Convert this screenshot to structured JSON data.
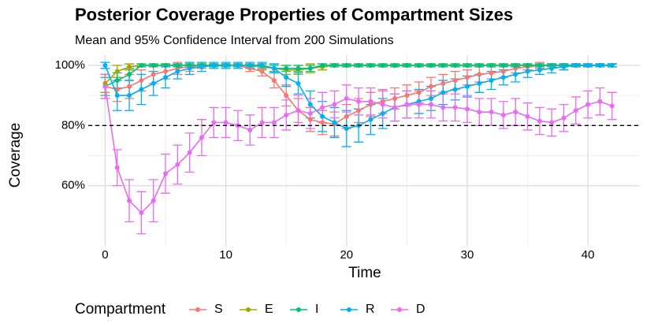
{
  "chart_data": {
    "type": "line",
    "title": "Posterior Coverage Properties of Compartment Sizes",
    "subtitle": "Mean and 95% Confidence Interval from 200 Simulations",
    "x_label": "Time",
    "y_label": "Coverage",
    "legend_title": "Compartment",
    "legend_position": "bottom",
    "x": [
      0,
      1,
      2,
      3,
      4,
      5,
      6,
      7,
      8,
      9,
      10,
      11,
      12,
      13,
      14,
      15,
      16,
      17,
      18,
      19,
      20,
      21,
      22,
      23,
      24,
      25,
      26,
      27,
      28,
      29,
      30,
      31,
      32,
      33,
      34,
      35,
      36,
      37,
      38,
      39,
      40,
      41,
      42
    ],
    "xlim": [
      -1.4,
      44.3
    ],
    "xticks": [
      0,
      10,
      20,
      30,
      40
    ],
    "xminor": [
      5,
      15,
      25,
      35
    ],
    "ylim": [
      40,
      103.4
    ],
    "yticks": [
      {
        "value": 60,
        "label": "60%"
      },
      {
        "value": 80,
        "label": "80%"
      },
      {
        "value": 100,
        "label": "100%"
      }
    ],
    "yminor": [
      70,
      90
    ],
    "hline": 80,
    "grid": true,
    "series": [
      {
        "name": "S",
        "color": "#F8766D",
        "values": [
          93,
          92,
          93,
          95,
          97,
          98,
          99,
          99.5,
          100,
          100,
          100,
          100,
          99,
          98,
          95,
          90,
          85,
          82,
          81,
          80.5,
          83,
          85,
          87,
          88,
          89,
          90,
          91,
          93,
          94,
          95,
          96,
          97,
          97.5,
          98,
          99,
          99.5,
          100,
          100,
          100,
          100,
          100,
          100,
          100
        ],
        "errors": [
          4,
          4,
          4,
          3.5,
          3,
          2.5,
          2,
          1.5,
          1,
          0.5,
          0.5,
          0.5,
          1,
          1.5,
          2.5,
          3.5,
          4,
          4,
          4,
          4,
          4,
          4,
          4,
          4,
          3.5,
          3.5,
          3.5,
          3,
          3,
          3,
          2.5,
          2.5,
          2,
          2,
          1.5,
          1,
          1,
          0.5,
          0.5,
          0.5,
          0.5,
          0.5,
          0.5
        ]
      },
      {
        "name": "E",
        "color": "#A3A500",
        "values": [
          94,
          98,
          99.5,
          100,
          100,
          100,
          100,
          100,
          100,
          100,
          100,
          100,
          100,
          99.5,
          99,
          98.5,
          98.5,
          99,
          99.5,
          100,
          100,
          100,
          100,
          100,
          100,
          100,
          100,
          100,
          100,
          100,
          100,
          100,
          100,
          100,
          100,
          100,
          100,
          100,
          100,
          100,
          100,
          100,
          100
        ],
        "errors": [
          3,
          2,
          1,
          0.5,
          0.5,
          0.5,
          0.5,
          0.5,
          0.5,
          0.5,
          0.5,
          0.5,
          0.5,
          1,
          1.5,
          1.5,
          1.5,
          1.5,
          1,
          0.5,
          0.5,
          0.5,
          0.5,
          0.5,
          0.5,
          0.5,
          0.5,
          0.5,
          0.5,
          0.5,
          0.5,
          0.5,
          0.5,
          0.5,
          0.5,
          0.5,
          0.5,
          0.5,
          0.5,
          0.5,
          0.5,
          0.5,
          0.5
        ]
      },
      {
        "name": "I",
        "color": "#00BF7D",
        "values": [
          93,
          95,
          97,
          100,
          100,
          100,
          100,
          100,
          100,
          100,
          100,
          100,
          100,
          100,
          99,
          99,
          99,
          99,
          100,
          100,
          100,
          100,
          100,
          100,
          100,
          100,
          100,
          100,
          100,
          100,
          100,
          100,
          100,
          100,
          100,
          100,
          100,
          100,
          100,
          100,
          100,
          100,
          100
        ],
        "errors": [
          3,
          2.5,
          2,
          0.5,
          0.5,
          0.5,
          0.5,
          0.5,
          0.5,
          0.5,
          0.5,
          0.5,
          0.5,
          0.5,
          1,
          1,
          1,
          1,
          0.5,
          0.5,
          0.5,
          0.5,
          0.5,
          0.5,
          0.5,
          0.5,
          0.5,
          0.5,
          0.5,
          0.5,
          0.5,
          0.5,
          0.5,
          0.5,
          0.5,
          0.5,
          0.5,
          0.5,
          0.5,
          0.5,
          0.5,
          0.5,
          0.5
        ]
      },
      {
        "name": "R",
        "color": "#00B0F6",
        "values": [
          100,
          90,
          90,
          92,
          94,
          96,
          98,
          99,
          99.5,
          100,
          100,
          100,
          100,
          100,
          99,
          96,
          94,
          87,
          83,
          81,
          79,
          80,
          82,
          84,
          86,
          87,
          88,
          89,
          91,
          92,
          93,
          94,
          95,
          96,
          97,
          98,
          98.5,
          99,
          99.5,
          100,
          100,
          100,
          100
        ],
        "errors": [
          1,
          5,
          5,
          5,
          4,
          3.5,
          2.5,
          2,
          1.5,
          1,
          1,
          1,
          1,
          1,
          1.5,
          3,
          3.5,
          4.5,
          5,
          5,
          6,
          5.5,
          5,
          5,
          4.5,
          4.5,
          4,
          4,
          4,
          3.5,
          3.5,
          3,
          3,
          2.5,
          2.5,
          2,
          1.5,
          1.5,
          1,
          0.5,
          0.5,
          0.5,
          0.5
        ]
      },
      {
        "name": "D",
        "color": "#E76BF3",
        "values": [
          93,
          66,
          55,
          51,
          55,
          64,
          67,
          71,
          76,
          81,
          81,
          80,
          78.5,
          81,
          81,
          83.5,
          85,
          84,
          86,
          87,
          89,
          88,
          88,
          87,
          86,
          87,
          87,
          87,
          86,
          86,
          85.5,
          84.5,
          84.5,
          83.5,
          84.5,
          83,
          81.5,
          81,
          82.5,
          85,
          87,
          88,
          86.5
        ],
        "errors": [
          4,
          6,
          7,
          7,
          7,
          6.5,
          6.5,
          6.5,
          6,
          5,
          5,
          5,
          5,
          5,
          5,
          5,
          5,
          5,
          5,
          4.5,
          4.5,
          4.5,
          4.5,
          4.5,
          4.5,
          4.5,
          4.5,
          4.5,
          4.5,
          4.5,
          4.5,
          4.5,
          4.5,
          4.5,
          4.5,
          4.5,
          4.5,
          4.5,
          4.5,
          4.5,
          4.5,
          4.5,
          4.5
        ]
      }
    ]
  }
}
